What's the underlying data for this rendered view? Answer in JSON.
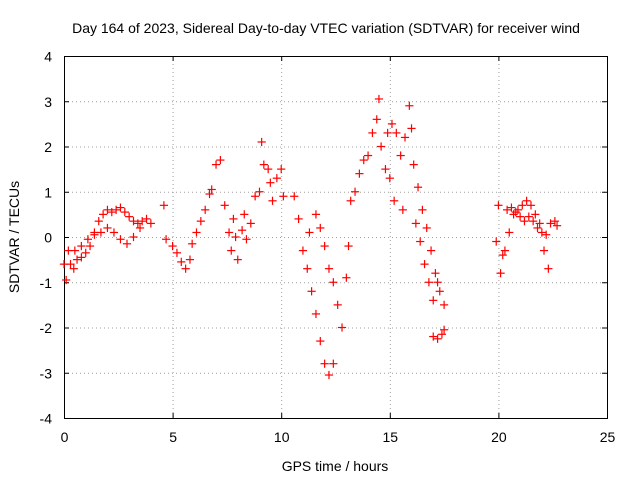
{
  "chart_data": {
    "type": "scatter",
    "title": "Day 164 of 2023, Sidereal Day-to-day VTEC variation (SDTVAR) for receiver wind",
    "xlabel": "GPS time / hours",
    "ylabel": "SDTVAR / TECUs",
    "xlim": [
      0,
      25
    ],
    "ylim": [
      -4,
      4
    ],
    "xticks": [
      "0",
      "5",
      "10",
      "15",
      "20",
      "25"
    ],
    "yticks": [
      "-4",
      "-3",
      "-2",
      "-1",
      "0",
      "1",
      "2",
      "3",
      "4"
    ],
    "grid": true,
    "marker": "plus",
    "color": "#ff0000",
    "series": [
      {
        "name": "SDTVAR",
        "points": [
          [
            0.0,
            -0.6
          ],
          [
            0.1,
            -0.95
          ],
          [
            0.2,
            -0.3
          ],
          [
            0.3,
            -0.6
          ],
          [
            0.45,
            -0.7
          ],
          [
            0.6,
            -0.5
          ],
          [
            0.8,
            -0.45
          ],
          [
            1.0,
            -0.35
          ],
          [
            1.2,
            -0.2
          ],
          [
            1.4,
            0.1
          ],
          [
            1.6,
            0.35
          ],
          [
            1.8,
            0.5
          ],
          [
            2.0,
            0.6
          ],
          [
            2.2,
            0.55
          ],
          [
            2.4,
            0.6
          ],
          [
            2.6,
            0.65
          ],
          [
            2.8,
            0.55
          ],
          [
            3.0,
            0.45
          ],
          [
            3.2,
            0.35
          ],
          [
            3.4,
            0.3
          ],
          [
            3.6,
            0.35
          ],
          [
            3.8,
            0.4
          ],
          [
            4.0,
            0.3
          ],
          [
            0.5,
            -0.3
          ],
          [
            0.8,
            -0.2
          ],
          [
            1.1,
            -0.05
          ],
          [
            1.4,
            0.05
          ],
          [
            1.7,
            0.1
          ],
          [
            2.0,
            0.2
          ],
          [
            2.3,
            0.1
          ],
          [
            2.6,
            -0.05
          ],
          [
            2.9,
            -0.15
          ],
          [
            3.2,
            0.0
          ],
          [
            3.5,
            0.2
          ],
          [
            4.6,
            0.7
          ],
          [
            4.7,
            -0.05
          ],
          [
            5.0,
            -0.2
          ],
          [
            5.2,
            -0.35
          ],
          [
            5.4,
            -0.55
          ],
          [
            5.6,
            -0.7
          ],
          [
            5.8,
            -0.5
          ],
          [
            5.9,
            -0.15
          ],
          [
            6.1,
            0.1
          ],
          [
            6.3,
            0.35
          ],
          [
            6.5,
            0.6
          ],
          [
            6.7,
            0.95
          ],
          [
            6.8,
            1.05
          ],
          [
            7.0,
            1.6
          ],
          [
            7.2,
            1.7
          ],
          [
            7.4,
            0.7
          ],
          [
            7.6,
            0.1
          ],
          [
            7.7,
            -0.3
          ],
          [
            7.8,
            0.4
          ],
          [
            8.0,
            -0.5
          ],
          [
            8.2,
            0.15
          ],
          [
            8.4,
            -0.05
          ],
          [
            8.6,
            0.3
          ],
          [
            8.8,
            0.9
          ],
          [
            9.0,
            1.0
          ],
          [
            9.2,
            1.6
          ],
          [
            9.4,
            1.5
          ],
          [
            9.6,
            0.8
          ],
          [
            9.8,
            1.3
          ],
          [
            10.0,
            1.5
          ],
          [
            10.1,
            0.9
          ],
          [
            9.1,
            2.1
          ],
          [
            9.5,
            1.2
          ],
          [
            8.3,
            0.5
          ],
          [
            7.9,
            0.0
          ],
          [
            10.6,
            0.9
          ],
          [
            10.8,
            0.4
          ],
          [
            11.0,
            -0.3
          ],
          [
            11.2,
            -0.7
          ],
          [
            11.4,
            -1.2
          ],
          [
            11.6,
            -1.7
          ],
          [
            11.8,
            -2.3
          ],
          [
            12.0,
            -2.8
          ],
          [
            12.2,
            -3.05
          ],
          [
            12.4,
            -2.8
          ],
          [
            11.3,
            0.1
          ],
          [
            11.6,
            0.5
          ],
          [
            11.8,
            0.2
          ],
          [
            12.0,
            -0.2
          ],
          [
            12.2,
            -0.7
          ],
          [
            12.4,
            -1.0
          ],
          [
            12.6,
            -1.5
          ],
          [
            12.8,
            -2.0
          ],
          [
            13.0,
            -0.9
          ],
          [
            13.1,
            -0.2
          ],
          [
            13.2,
            0.8
          ],
          [
            13.4,
            1.0
          ],
          [
            13.6,
            1.4
          ],
          [
            13.8,
            1.7
          ],
          [
            14.0,
            1.8
          ],
          [
            14.2,
            2.3
          ],
          [
            14.4,
            2.6
          ],
          [
            14.5,
            3.05
          ],
          [
            14.6,
            2.0
          ],
          [
            14.8,
            1.5
          ],
          [
            15.0,
            1.3
          ],
          [
            15.2,
            0.8
          ],
          [
            14.9,
            2.3
          ],
          [
            15.1,
            2.5
          ],
          [
            15.3,
            2.3
          ],
          [
            15.5,
            1.8
          ],
          [
            15.7,
            2.2
          ],
          [
            15.9,
            2.9
          ],
          [
            16.0,
            2.4
          ],
          [
            16.1,
            1.6
          ],
          [
            16.3,
            1.1
          ],
          [
            16.5,
            0.6
          ],
          [
            16.7,
            0.2
          ],
          [
            16.9,
            -0.3
          ],
          [
            17.1,
            -0.8
          ],
          [
            17.3,
            -1.2
          ],
          [
            17.5,
            -1.5
          ],
          [
            16.4,
            -0.1
          ],
          [
            16.6,
            -0.6
          ],
          [
            16.8,
            -1.0
          ],
          [
            17.0,
            -1.4
          ],
          [
            17.2,
            -1.0
          ],
          [
            16.2,
            0.3
          ],
          [
            15.6,
            0.6
          ],
          [
            17.0,
            -2.2
          ],
          [
            17.2,
            -2.25
          ],
          [
            17.4,
            -2.15
          ],
          [
            17.5,
            -2.05
          ],
          [
            20.0,
            0.7
          ],
          [
            19.9,
            -0.1
          ],
          [
            20.1,
            -0.8
          ],
          [
            20.2,
            -0.4
          ],
          [
            20.3,
            -0.3
          ],
          [
            20.5,
            0.1
          ],
          [
            20.7,
            0.5
          ],
          [
            20.9,
            0.6
          ],
          [
            21.1,
            0.7
          ],
          [
            21.3,
            0.8
          ],
          [
            21.5,
            0.7
          ],
          [
            21.7,
            0.5
          ],
          [
            21.9,
            0.3
          ],
          [
            22.1,
            -0.3
          ],
          [
            22.3,
            -0.7
          ],
          [
            20.4,
            0.6
          ],
          [
            20.6,
            0.65
          ],
          [
            20.8,
            0.55
          ],
          [
            21.0,
            0.45
          ],
          [
            21.2,
            0.35
          ],
          [
            21.4,
            0.45
          ],
          [
            21.6,
            0.35
          ],
          [
            21.8,
            0.2
          ],
          [
            22.0,
            0.1
          ],
          [
            22.2,
            0.05
          ],
          [
            22.4,
            0.3
          ],
          [
            22.6,
            0.35
          ],
          [
            22.7,
            0.25
          ]
        ]
      }
    ]
  }
}
